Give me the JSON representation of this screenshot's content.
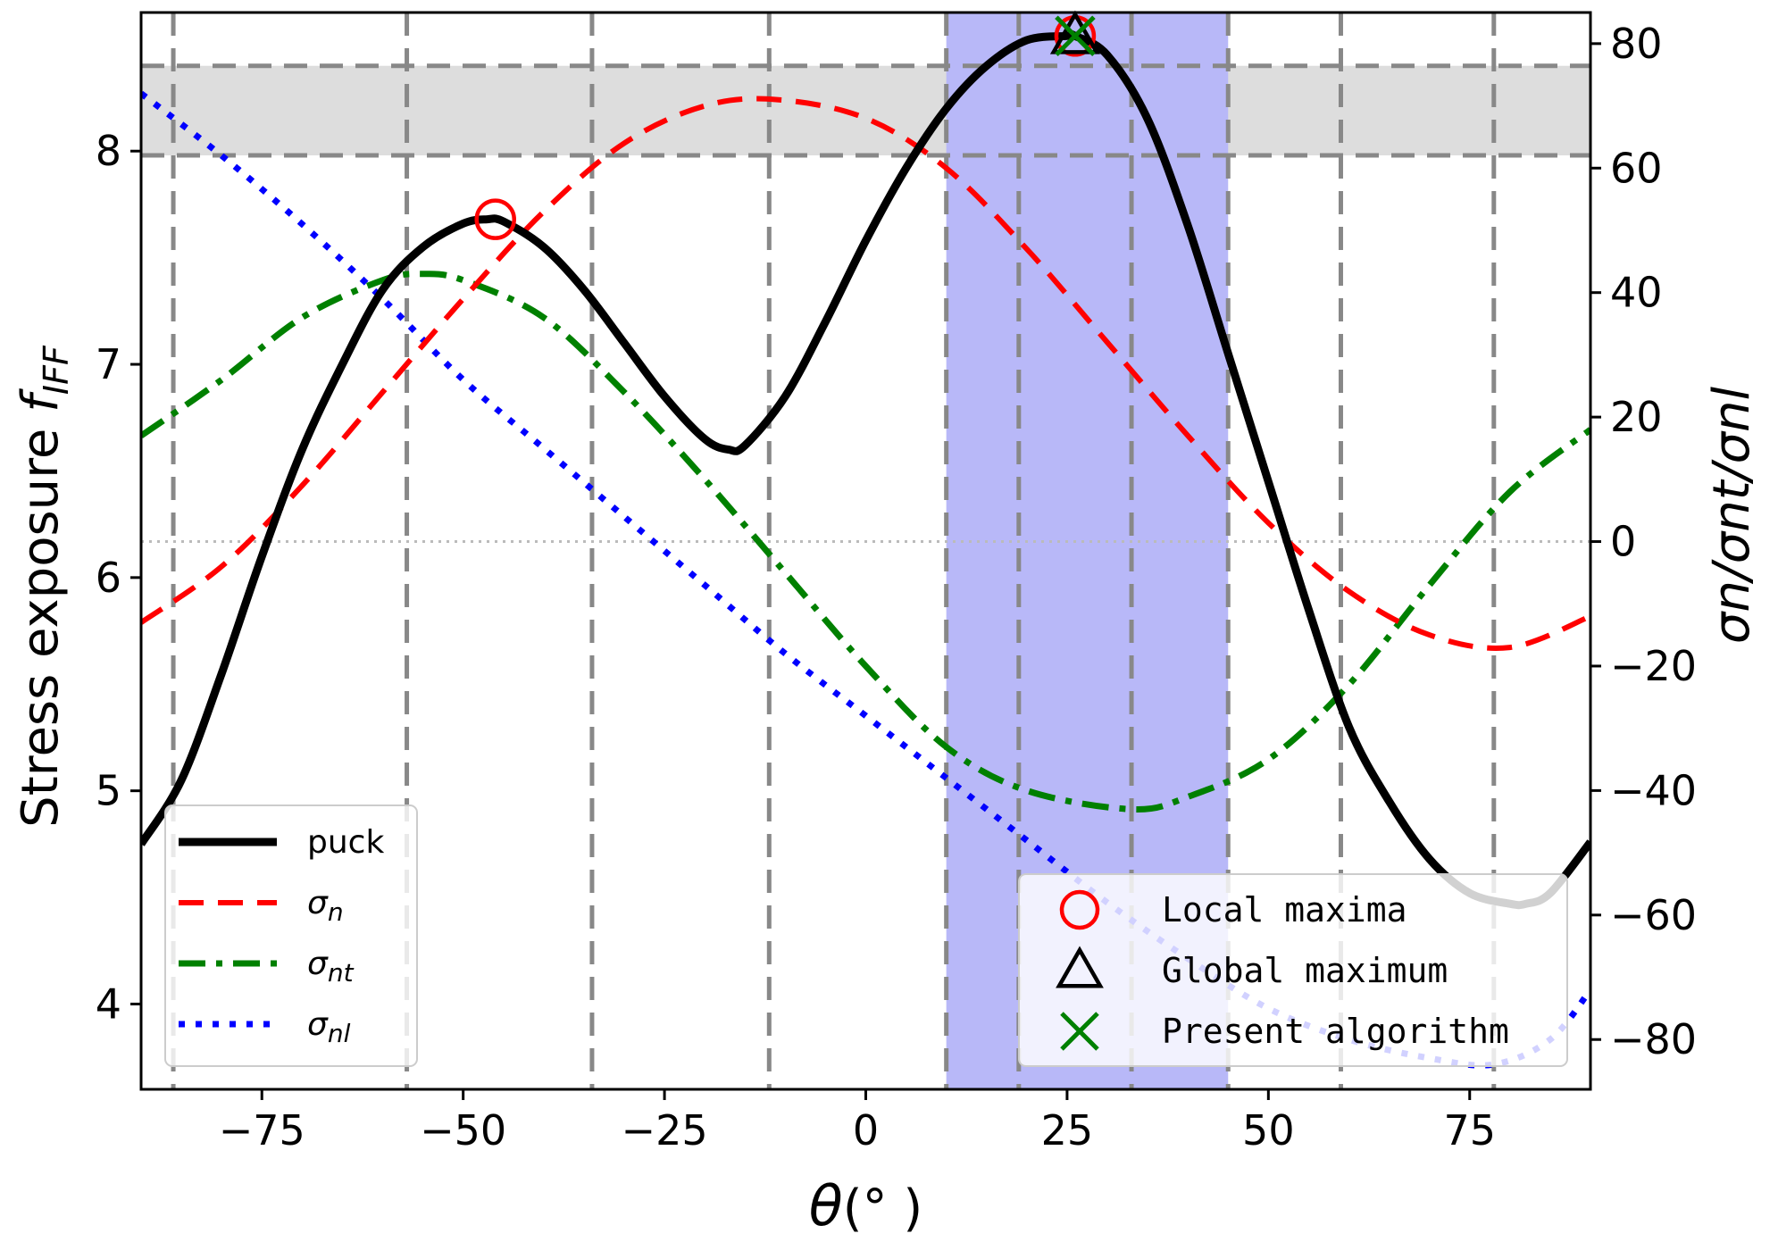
{
  "chart_data": {
    "type": "line",
    "xlabel": "θ(°  )",
    "ylabel_left": "Stress exposure f",
    "ylabel_left_subscript": "IFF",
    "ylabel_right": "σn/σnt/σnl",
    "xlim": [
      -90,
      90
    ],
    "ylim_left": [
      3.6,
      8.65
    ],
    "ylim_right": [
      -88,
      85
    ],
    "x_ticks": [
      -75,
      -50,
      -25,
      0,
      25,
      50,
      75
    ],
    "x_tick_labels": [
      "−75",
      "−50",
      "−25",
      "0",
      "25",
      "50",
      "75"
    ],
    "y_left_ticks": [
      4,
      5,
      6,
      7,
      8
    ],
    "y_left_tick_labels": [
      "4",
      "5",
      "6",
      "7",
      "8"
    ],
    "y_right_ticks": [
      80,
      60,
      40,
      20,
      0,
      -20,
      -40,
      -60,
      -80
    ],
    "y_right_tick_labels": [
      "80",
      "60",
      "40",
      "20",
      "0",
      "−20",
      "−40",
      "−60",
      "−80"
    ],
    "vertical_dashed_lines_x": [
      -86,
      -57,
      -34,
      -12,
      10,
      19,
      33,
      45,
      59,
      78
    ],
    "highlight_x_range": [
      10,
      45
    ],
    "highlight_color": "#b8b8f8",
    "band_left_y_range": [
      7.98,
      8.4
    ],
    "band_color": "#dddddd",
    "zero_line_right_y": 0,
    "series": [
      {
        "name": "puck",
        "axis": "left",
        "color": "#000000",
        "style": "solid",
        "x": [
          -90,
          -85,
          -80,
          -75,
          -70,
          -65,
          -60,
          -55,
          -50,
          -47,
          -45,
          -40,
          -35,
          -30,
          -25,
          -20,
          -17,
          -15,
          -10,
          -5,
          0,
          5,
          10,
          15,
          20,
          25,
          26,
          30,
          35,
          40,
          45,
          50,
          55,
          60,
          65,
          70,
          75,
          80,
          82,
          85,
          90
        ],
        "y": [
          4.75,
          5.05,
          5.55,
          6.1,
          6.6,
          7.0,
          7.35,
          7.55,
          7.66,
          7.68,
          7.67,
          7.55,
          7.35,
          7.1,
          6.85,
          6.65,
          6.6,
          6.62,
          6.85,
          7.2,
          7.58,
          7.92,
          8.2,
          8.4,
          8.52,
          8.54,
          8.54,
          8.45,
          8.15,
          7.65,
          7.05,
          6.45,
          5.85,
          5.3,
          4.95,
          4.68,
          4.52,
          4.47,
          4.47,
          4.52,
          4.76
        ]
      },
      {
        "name": "σn",
        "axis": "right",
        "color": "#ff0000",
        "style": "dashed",
        "x": [
          -90,
          -80,
          -70,
          -60,
          -50,
          -40,
          -30,
          -20,
          -11,
          0,
          10,
          20,
          30,
          40,
          50,
          60,
          70,
          80,
          90
        ],
        "y": [
          -13,
          -4,
          9,
          24,
          39,
          53,
          64,
          70,
          71,
          68,
          60,
          47,
          32,
          17,
          3,
          -8,
          -15,
          -17,
          -12
        ]
      },
      {
        "name": "σnt",
        "axis": "right",
        "color": "#008000",
        "style": "dashdot",
        "x": [
          -90,
          -80,
          -70,
          -60,
          -55,
          -50,
          -40,
          -30,
          -20,
          -10,
          0,
          10,
          20,
          33,
          40,
          50,
          60,
          70,
          80,
          90
        ],
        "y": [
          17,
          26,
          36,
          42,
          43,
          42,
          36,
          24,
          10,
          -5,
          -20,
          -33,
          -40,
          -43,
          -41,
          -35,
          -23,
          -7,
          8,
          18
        ]
      },
      {
        "name": "σnl",
        "axis": "right",
        "color": "#0000ff",
        "style": "dotted",
        "x": [
          -90,
          -80,
          -70,
          -60,
          -50,
          -40,
          -30,
          -20,
          -10,
          0,
          10,
          20,
          30,
          40,
          50,
          60,
          70,
          78,
          85,
          90
        ],
        "y": [
          72,
          62,
          51,
          39,
          26,
          15,
          4,
          -7,
          -18,
          -28,
          -38,
          -48,
          -58,
          -67,
          -75,
          -80,
          -83,
          -84,
          -80,
          -72
        ]
      }
    ],
    "markers": [
      {
        "name": "Local maxima",
        "shape": "circle",
        "color": "#ff0000",
        "points": [
          {
            "x": -46,
            "y": 7.68
          },
          {
            "x": 26,
            "y": 8.54
          }
        ]
      },
      {
        "name": "Global maximum",
        "shape": "triangle",
        "color": "#000000",
        "points": [
          {
            "x": 26,
            "y": 8.54
          }
        ]
      },
      {
        "name": "Present algorithm",
        "shape": "x",
        "color": "#008000",
        "points": [
          {
            "x": 26,
            "y": 8.54
          }
        ]
      }
    ],
    "legend_lines": [
      {
        "label": "puck",
        "sub": "",
        "color": "#000000",
        "style": "solid"
      },
      {
        "label": "σ",
        "sub": "n",
        "color": "#ff0000",
        "style": "dashed"
      },
      {
        "label": "σ",
        "sub": "nt",
        "color": "#008000",
        "style": "dashdot"
      },
      {
        "label": "σ",
        "sub": "nl",
        "color": "#0000ff",
        "style": "dotted"
      }
    ],
    "legend_markers": [
      {
        "label": "Local maxima",
        "shape": "circle",
        "color": "#ff0000"
      },
      {
        "label": "Global maximum",
        "shape": "triangle",
        "color": "#000000"
      },
      {
        "label": "Present algorithm",
        "shape": "x",
        "color": "#008000"
      }
    ]
  }
}
